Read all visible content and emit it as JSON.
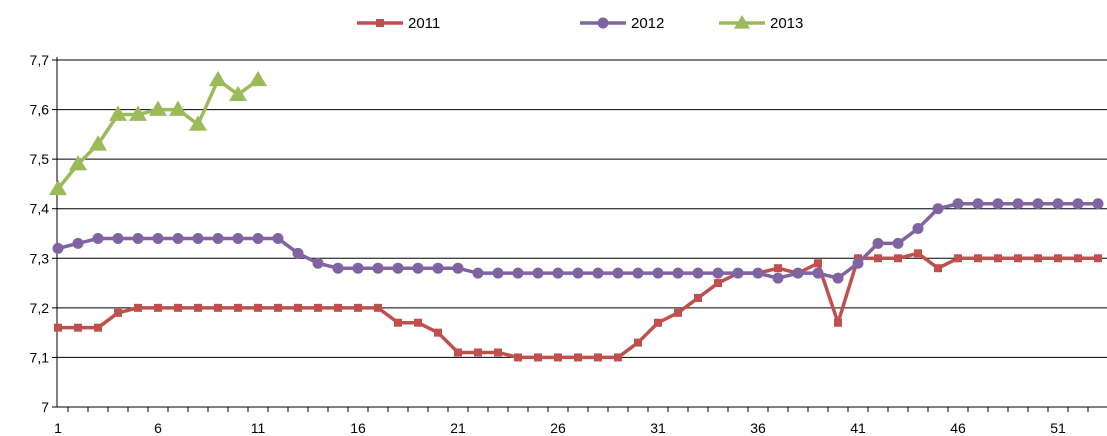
{
  "chart_data": {
    "type": "line",
    "title": "",
    "xlabel": "",
    "ylabel": "",
    "x_tick_labels": [
      "1",
      "6",
      "11",
      "16",
      "21",
      "26",
      "31",
      "36",
      "41",
      "46",
      "51"
    ],
    "y_tick_labels": [
      "7",
      "7,1",
      "7,2",
      "7,3",
      "7,4",
      "7,5",
      "7,6",
      "7,7"
    ],
    "xlim": [
      1,
      53
    ],
    "ylim": [
      7.0,
      7.7
    ],
    "grid": "horizontal",
    "legend_position": "top",
    "series": [
      {
        "name": "2011",
        "color": "#c0504d",
        "marker": "square",
        "values": [
          7.16,
          7.16,
          7.16,
          7.19,
          7.2,
          7.2,
          7.2,
          7.2,
          7.2,
          7.2,
          7.2,
          7.2,
          7.2,
          7.2,
          7.2,
          7.2,
          7.2,
          7.17,
          7.17,
          7.15,
          7.11,
          7.11,
          7.11,
          7.1,
          7.1,
          7.1,
          7.1,
          7.1,
          7.1,
          7.13,
          7.17,
          7.19,
          7.22,
          7.25,
          7.27,
          7.27,
          7.28,
          7.27,
          7.29,
          7.17,
          7.3,
          7.3,
          7.3,
          7.31,
          7.28,
          7.3,
          7.3,
          7.3,
          7.3,
          7.3,
          7.3,
          7.3,
          7.3
        ]
      },
      {
        "name": "2012",
        "color": "#8064a2",
        "marker": "circle",
        "values": [
          7.32,
          7.33,
          7.34,
          7.34,
          7.34,
          7.34,
          7.34,
          7.34,
          7.34,
          7.34,
          7.34,
          7.34,
          7.31,
          7.29,
          7.28,
          7.28,
          7.28,
          7.28,
          7.28,
          7.28,
          7.28,
          7.27,
          7.27,
          7.27,
          7.27,
          7.27,
          7.27,
          7.27,
          7.27,
          7.27,
          7.27,
          7.27,
          7.27,
          7.27,
          7.27,
          7.27,
          7.26,
          7.27,
          7.27,
          7.26,
          7.29,
          7.33,
          7.33,
          7.36,
          7.4,
          7.41,
          7.41,
          7.41,
          7.41,
          7.41,
          7.41,
          7.41,
          7.41
        ]
      },
      {
        "name": "2013",
        "color": "#9bbb59",
        "marker": "triangle",
        "values": [
          7.44,
          7.49,
          7.53,
          7.59,
          7.59,
          7.6,
          7.6,
          7.57,
          7.66,
          7.63,
          7.66
        ]
      }
    ]
  }
}
